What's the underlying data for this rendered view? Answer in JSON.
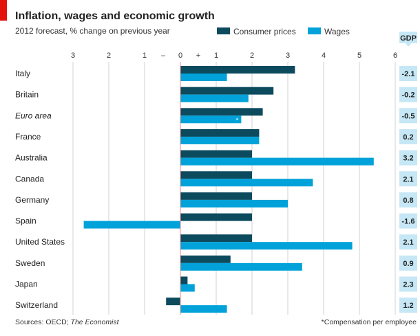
{
  "chart_data": {
    "type": "bar",
    "orientation": "horizontal",
    "title": "Inflation, wages and economic growth",
    "subtitle": "2012 forecast, % change on previous year",
    "categories": [
      "Italy",
      "Britain",
      "Euro area",
      "France",
      "Australia",
      "Canada",
      "Germany",
      "Spain",
      "United States",
      "Sweden",
      "Japan",
      "Switzerland"
    ],
    "series": [
      {
        "name": "Consumer prices",
        "color": "#0c4a5e",
        "values": [
          3.2,
          2.6,
          2.3,
          2.2,
          2.0,
          2.0,
          2.0,
          2.0,
          2.0,
          1.4,
          0.2,
          -0.4
        ]
      },
      {
        "name": "Wages",
        "color": "#00a2d9",
        "values": [
          1.3,
          1.9,
          1.7,
          2.2,
          5.4,
          3.7,
          3.0,
          -2.7,
          4.8,
          3.4,
          0.4,
          1.3
        ]
      }
    ],
    "gdp": {
      "label": "GDP",
      "values": [
        "-2.1",
        "-0.2",
        "-0.5",
        "0.2",
        "3.2",
        "2.1",
        "0.8",
        "-1.6",
        "2.1",
        "0.9",
        "2.3",
        "1.2"
      ],
      "color": "#c6e7f5"
    },
    "italic_categories": [
      "Euro area"
    ],
    "wages_footnote_marker": {
      "category": "Euro area",
      "marker": "*"
    },
    "xlim": [
      -3,
      6
    ],
    "x_ticks": [
      "3",
      "2",
      "1",
      "0",
      "1",
      "2",
      "3",
      "4",
      "5",
      "6"
    ],
    "x_tick_values": [
      -3,
      -2,
      -1,
      0,
      1,
      2,
      3,
      4,
      5,
      6
    ],
    "minus_sign": "–",
    "plus_sign": "+",
    "grid": true,
    "legend_position": "top",
    "source": "Sources: OECD; ",
    "source_italic": "The Economist",
    "footnote": "*Compensation per employee",
    "accent_color": "#e3120b"
  }
}
